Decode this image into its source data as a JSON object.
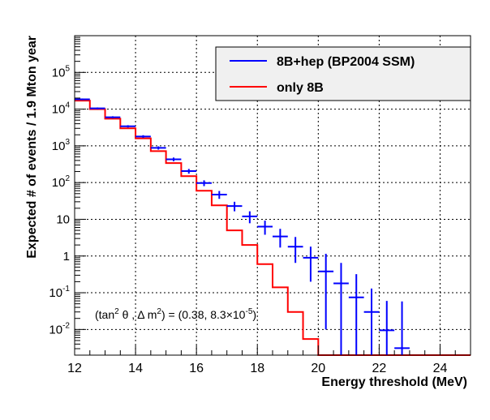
{
  "chart_data": {
    "type": "histogram",
    "xlabel": "Energy threshold (MeV)",
    "ylabel": "Expected # of events / 1.9 Mton year",
    "xlim": [
      12,
      25
    ],
    "ylim": [
      0.002,
      1000000
    ],
    "yscale": "log",
    "grid": true,
    "xticks": [
      "12",
      "14",
      "16",
      "18",
      "20",
      "22",
      "24"
    ],
    "yticks": [
      {
        "base": "10",
        "exp": "-2"
      },
      {
        "base": "10",
        "exp": "-1"
      },
      {
        "base": "1",
        "exp": ""
      },
      {
        "base": "10",
        "exp": ""
      },
      {
        "base": "10",
        "exp": "2"
      },
      {
        "base": "10",
        "exp": "3"
      },
      {
        "base": "10",
        "exp": "4"
      },
      {
        "base": "10",
        "exp": "5"
      }
    ],
    "bin_edges": [
      12,
      12.5,
      13,
      13.5,
      14,
      14.5,
      15,
      15.5,
      16,
      16.5,
      17,
      17.5,
      18,
      18.5,
      19,
      19.5,
      20,
      20.5,
      21,
      21.5,
      22,
      22.5,
      23,
      23.5,
      24,
      24.5,
      25
    ],
    "series": [
      {
        "name": "8B+hep (BP2004 SSM)",
        "color": "#0000ff",
        "style": "points-with-errors",
        "values": [
          18500,
          10500,
          6000,
          3400,
          1800,
          880,
          430,
          205,
          97,
          47,
          23,
          12,
          6.3,
          3.4,
          1.8,
          0.9,
          0.38,
          0.18,
          0.075,
          0.03,
          0.0095,
          0.0031
        ],
        "err_low": [
          17500,
          9900,
          5600,
          3150,
          1650,
          790,
          380,
          175,
          80,
          36,
          16.5,
          7.8,
          3.8,
          1.7,
          0.65,
          0.2,
          0.01,
          0.002,
          0.002,
          0.002,
          0.002,
          0.002
        ],
        "err_high": [
          19500,
          11100,
          6400,
          3650,
          1950,
          970,
          480,
          235,
          115,
          59,
          30,
          16.5,
          9.2,
          5.5,
          3.3,
          1.8,
          1.15,
          0.65,
          0.32,
          0.13,
          0.06,
          0.058
        ]
      },
      {
        "name": "only 8B",
        "color": "#ff0000",
        "style": "step",
        "values": [
          17000,
          10000,
          5500,
          3000,
          1600,
          720,
          340,
          150,
          60,
          24,
          5,
          2,
          0.6,
          0.14,
          0.03,
          0.0055,
          0.0015,
          0.0015,
          0.0015,
          0.0015,
          0.0015,
          0.0015,
          0.0015,
          0.0015,
          0.0015,
          0.0015
        ]
      }
    ],
    "annotation": {
      "prefix": "(tan",
      "sup1": "2",
      "middle": " θ , Δ m",
      "sup2": "2",
      "eq": ") = (0.38, 8.3×10",
      "sup3": "-5",
      "suffix": ")"
    },
    "legend_position": "top-right",
    "colors": {
      "axis": "#000000",
      "grid": "#000000",
      "legend_border": "#000000"
    }
  }
}
